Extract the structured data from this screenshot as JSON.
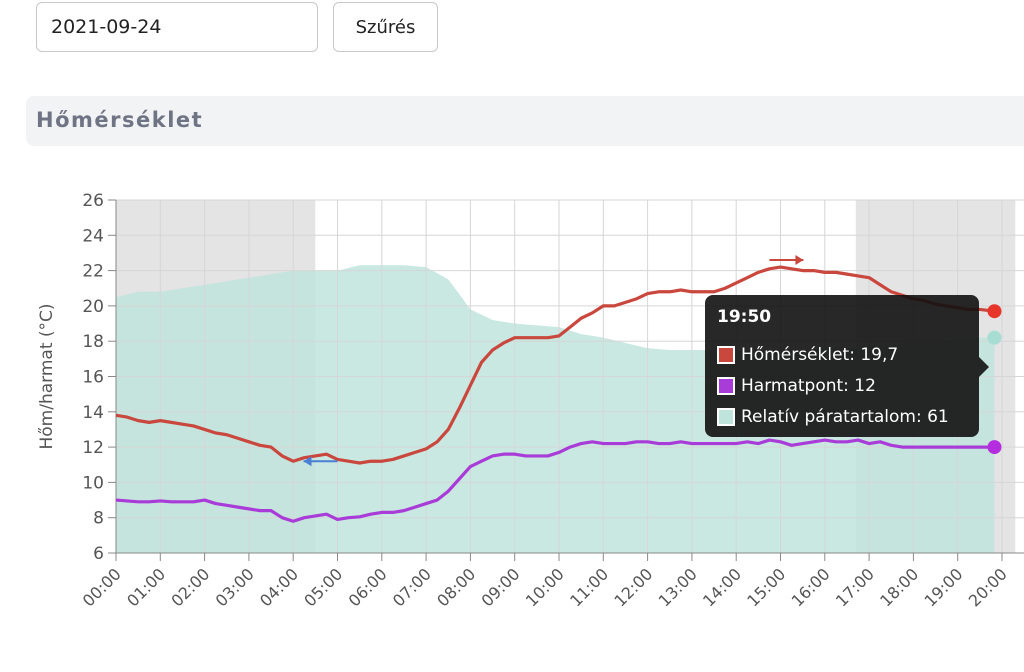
{
  "filter": {
    "date_value": "2021-09-24",
    "button_label": "Szűrés"
  },
  "section": {
    "title": "Hőmérséklet"
  },
  "colors": {
    "temperature": "#c9473d",
    "dew_point": "#a93bd8",
    "humidity_fill": "#bfe4dc",
    "night_shade": "#e4e4e4",
    "tooltip_bg": "#111111"
  },
  "tooltip": {
    "time": "19:50",
    "items": [
      {
        "label": "Hőmérséklet: 19,7",
        "color": "#c9473d"
      },
      {
        "label": "Harmatpont: 12",
        "color": "#a93bd8"
      },
      {
        "label": "Relatív páratartalom: 61",
        "color": "#bfe4dc"
      }
    ]
  },
  "chart_data": {
    "type": "line",
    "ylabel": "Hőm/harmat (°C)",
    "ylim": [
      6,
      26
    ],
    "yticks": [
      "6",
      "8",
      "10",
      "12",
      "14",
      "16",
      "18",
      "20",
      "22",
      "24",
      "26"
    ],
    "xlim_hours": [
      0,
      20.3
    ],
    "xticks": [
      "00:00",
      "01:00",
      "02:00",
      "03:00",
      "04:00",
      "05:00",
      "06:00",
      "07:00",
      "08:00",
      "09:00",
      "10:00",
      "11:00",
      "12:00",
      "13:00",
      "14:00",
      "15:00",
      "16:00",
      "17:00",
      "18:00",
      "19:00",
      "20:00"
    ],
    "night_bands_hours": [
      [
        0,
        4.5
      ],
      [
        16.7,
        20.3
      ]
    ],
    "grid": true,
    "legend": "none",
    "series": [
      {
        "name": "Relatív páratartalom",
        "kind": "area",
        "x": [
          0,
          0.5,
          1,
          1.5,
          2,
          2.5,
          3,
          3.5,
          4,
          4.5,
          5,
          5.5,
          6,
          6.5,
          7,
          7.5,
          7.8,
          8,
          8.5,
          9,
          9.5,
          10,
          10.5,
          11,
          11.5,
          12,
          12.5,
          13,
          13.5,
          14,
          14.5,
          15,
          15.5,
          16,
          16.5,
          17,
          17.5,
          18,
          18.5,
          19,
          19.5,
          19.83
        ],
        "values": [
          20.5,
          20.8,
          20.8,
          21,
          21.2,
          21.4,
          21.6,
          21.8,
          22,
          22,
          22,
          22.3,
          22.3,
          22.3,
          22.2,
          21.5,
          20.5,
          19.8,
          19.2,
          19,
          18.9,
          18.8,
          18.4,
          18.2,
          17.9,
          17.6,
          17.5,
          17.5,
          17.5,
          17.5,
          17.5,
          17.5,
          17.5,
          17.6,
          17.6,
          17.7,
          17.8,
          17.9,
          18,
          18.1,
          18.2,
          18.2
        ]
      },
      {
        "name": "Hőmérséklet",
        "kind": "line",
        "x": [
          0,
          0.25,
          0.5,
          0.75,
          1,
          1.25,
          1.5,
          1.75,
          2,
          2.25,
          2.5,
          2.75,
          3,
          3.25,
          3.5,
          3.75,
          4,
          4.25,
          4.5,
          4.75,
          5,
          5.25,
          5.5,
          5.75,
          6,
          6.25,
          6.5,
          6.75,
          7,
          7.25,
          7.5,
          7.75,
          8,
          8.25,
          8.5,
          8.75,
          9,
          9.25,
          9.5,
          9.75,
          10,
          10.25,
          10.5,
          10.75,
          11,
          11.25,
          11.5,
          11.75,
          12,
          12.25,
          12.5,
          12.75,
          13,
          13.25,
          13.5,
          13.75,
          14,
          14.25,
          14.5,
          14.75,
          15,
          15.25,
          15.5,
          15.75,
          16,
          16.25,
          16.5,
          16.75,
          17,
          17.25,
          17.5,
          17.75,
          18,
          18.25,
          18.5,
          18.75,
          19,
          19.25,
          19.5,
          19.83
        ],
        "values": [
          13.8,
          13.7,
          13.5,
          13.4,
          13.5,
          13.4,
          13.3,
          13.2,
          13,
          12.8,
          12.7,
          12.5,
          12.3,
          12.1,
          12,
          11.5,
          11.2,
          11.4,
          11.5,
          11.6,
          11.3,
          11.2,
          11.1,
          11.2,
          11.2,
          11.3,
          11.5,
          11.7,
          11.9,
          12.3,
          13,
          14.2,
          15.5,
          16.8,
          17.5,
          17.9,
          18.2,
          18.2,
          18.2,
          18.2,
          18.3,
          18.8,
          19.3,
          19.6,
          20,
          20,
          20.2,
          20.4,
          20.7,
          20.8,
          20.8,
          20.9,
          20.8,
          20.8,
          20.8,
          21,
          21.3,
          21.6,
          21.9,
          22.1,
          22.2,
          22.1,
          22,
          22,
          21.9,
          21.9,
          21.8,
          21.7,
          21.6,
          21.2,
          20.8,
          20.6,
          20.4,
          20.3,
          20.1,
          20,
          19.9,
          19.8,
          19.8,
          19.7
        ]
      },
      {
        "name": "Harmatpont",
        "kind": "line",
        "x": [
          0,
          0.25,
          0.5,
          0.75,
          1,
          1.25,
          1.5,
          1.75,
          2,
          2.25,
          2.5,
          2.75,
          3,
          3.25,
          3.5,
          3.75,
          4,
          4.25,
          4.5,
          4.75,
          5,
          5.25,
          5.5,
          5.75,
          6,
          6.25,
          6.5,
          6.75,
          7,
          7.25,
          7.5,
          7.75,
          8,
          8.25,
          8.5,
          8.75,
          9,
          9.25,
          9.5,
          9.75,
          10,
          10.25,
          10.5,
          10.75,
          11,
          11.25,
          11.5,
          11.75,
          12,
          12.25,
          12.5,
          12.75,
          13,
          13.25,
          13.5,
          13.75,
          14,
          14.25,
          14.5,
          14.75,
          15,
          15.25,
          15.5,
          15.75,
          16,
          16.25,
          16.5,
          16.75,
          17,
          17.25,
          17.5,
          17.75,
          18,
          18.25,
          18.5,
          18.75,
          19,
          19.25,
          19.5,
          19.83
        ],
        "values": [
          9,
          8.95,
          8.9,
          8.9,
          8.95,
          8.9,
          8.9,
          8.9,
          9,
          8.8,
          8.7,
          8.6,
          8.5,
          8.4,
          8.4,
          8,
          7.8,
          8,
          8.1,
          8.2,
          7.9,
          8,
          8.05,
          8.2,
          8.3,
          8.3,
          8.4,
          8.6,
          8.8,
          9,
          9.5,
          10.2,
          10.9,
          11.2,
          11.5,
          11.6,
          11.6,
          11.5,
          11.5,
          11.5,
          11.7,
          12,
          12.2,
          12.3,
          12.2,
          12.2,
          12.2,
          12.3,
          12.3,
          12.2,
          12.2,
          12.3,
          12.2,
          12.2,
          12.2,
          12.2,
          12.2,
          12.3,
          12.2,
          12.4,
          12.3,
          12.1,
          12.2,
          12.3,
          12.4,
          12.3,
          12.3,
          12.4,
          12.2,
          12.3,
          12.1,
          12,
          12,
          12,
          12,
          12,
          12,
          12,
          12,
          12
        ]
      }
    ],
    "arrows": [
      {
        "hour": 14.75,
        "value": 22.6,
        "direction": "right",
        "color": "#c9473d"
      },
      {
        "hour": 5.0,
        "value": 11.2,
        "direction": "left",
        "color": "#4a7fd6"
      }
    ]
  }
}
